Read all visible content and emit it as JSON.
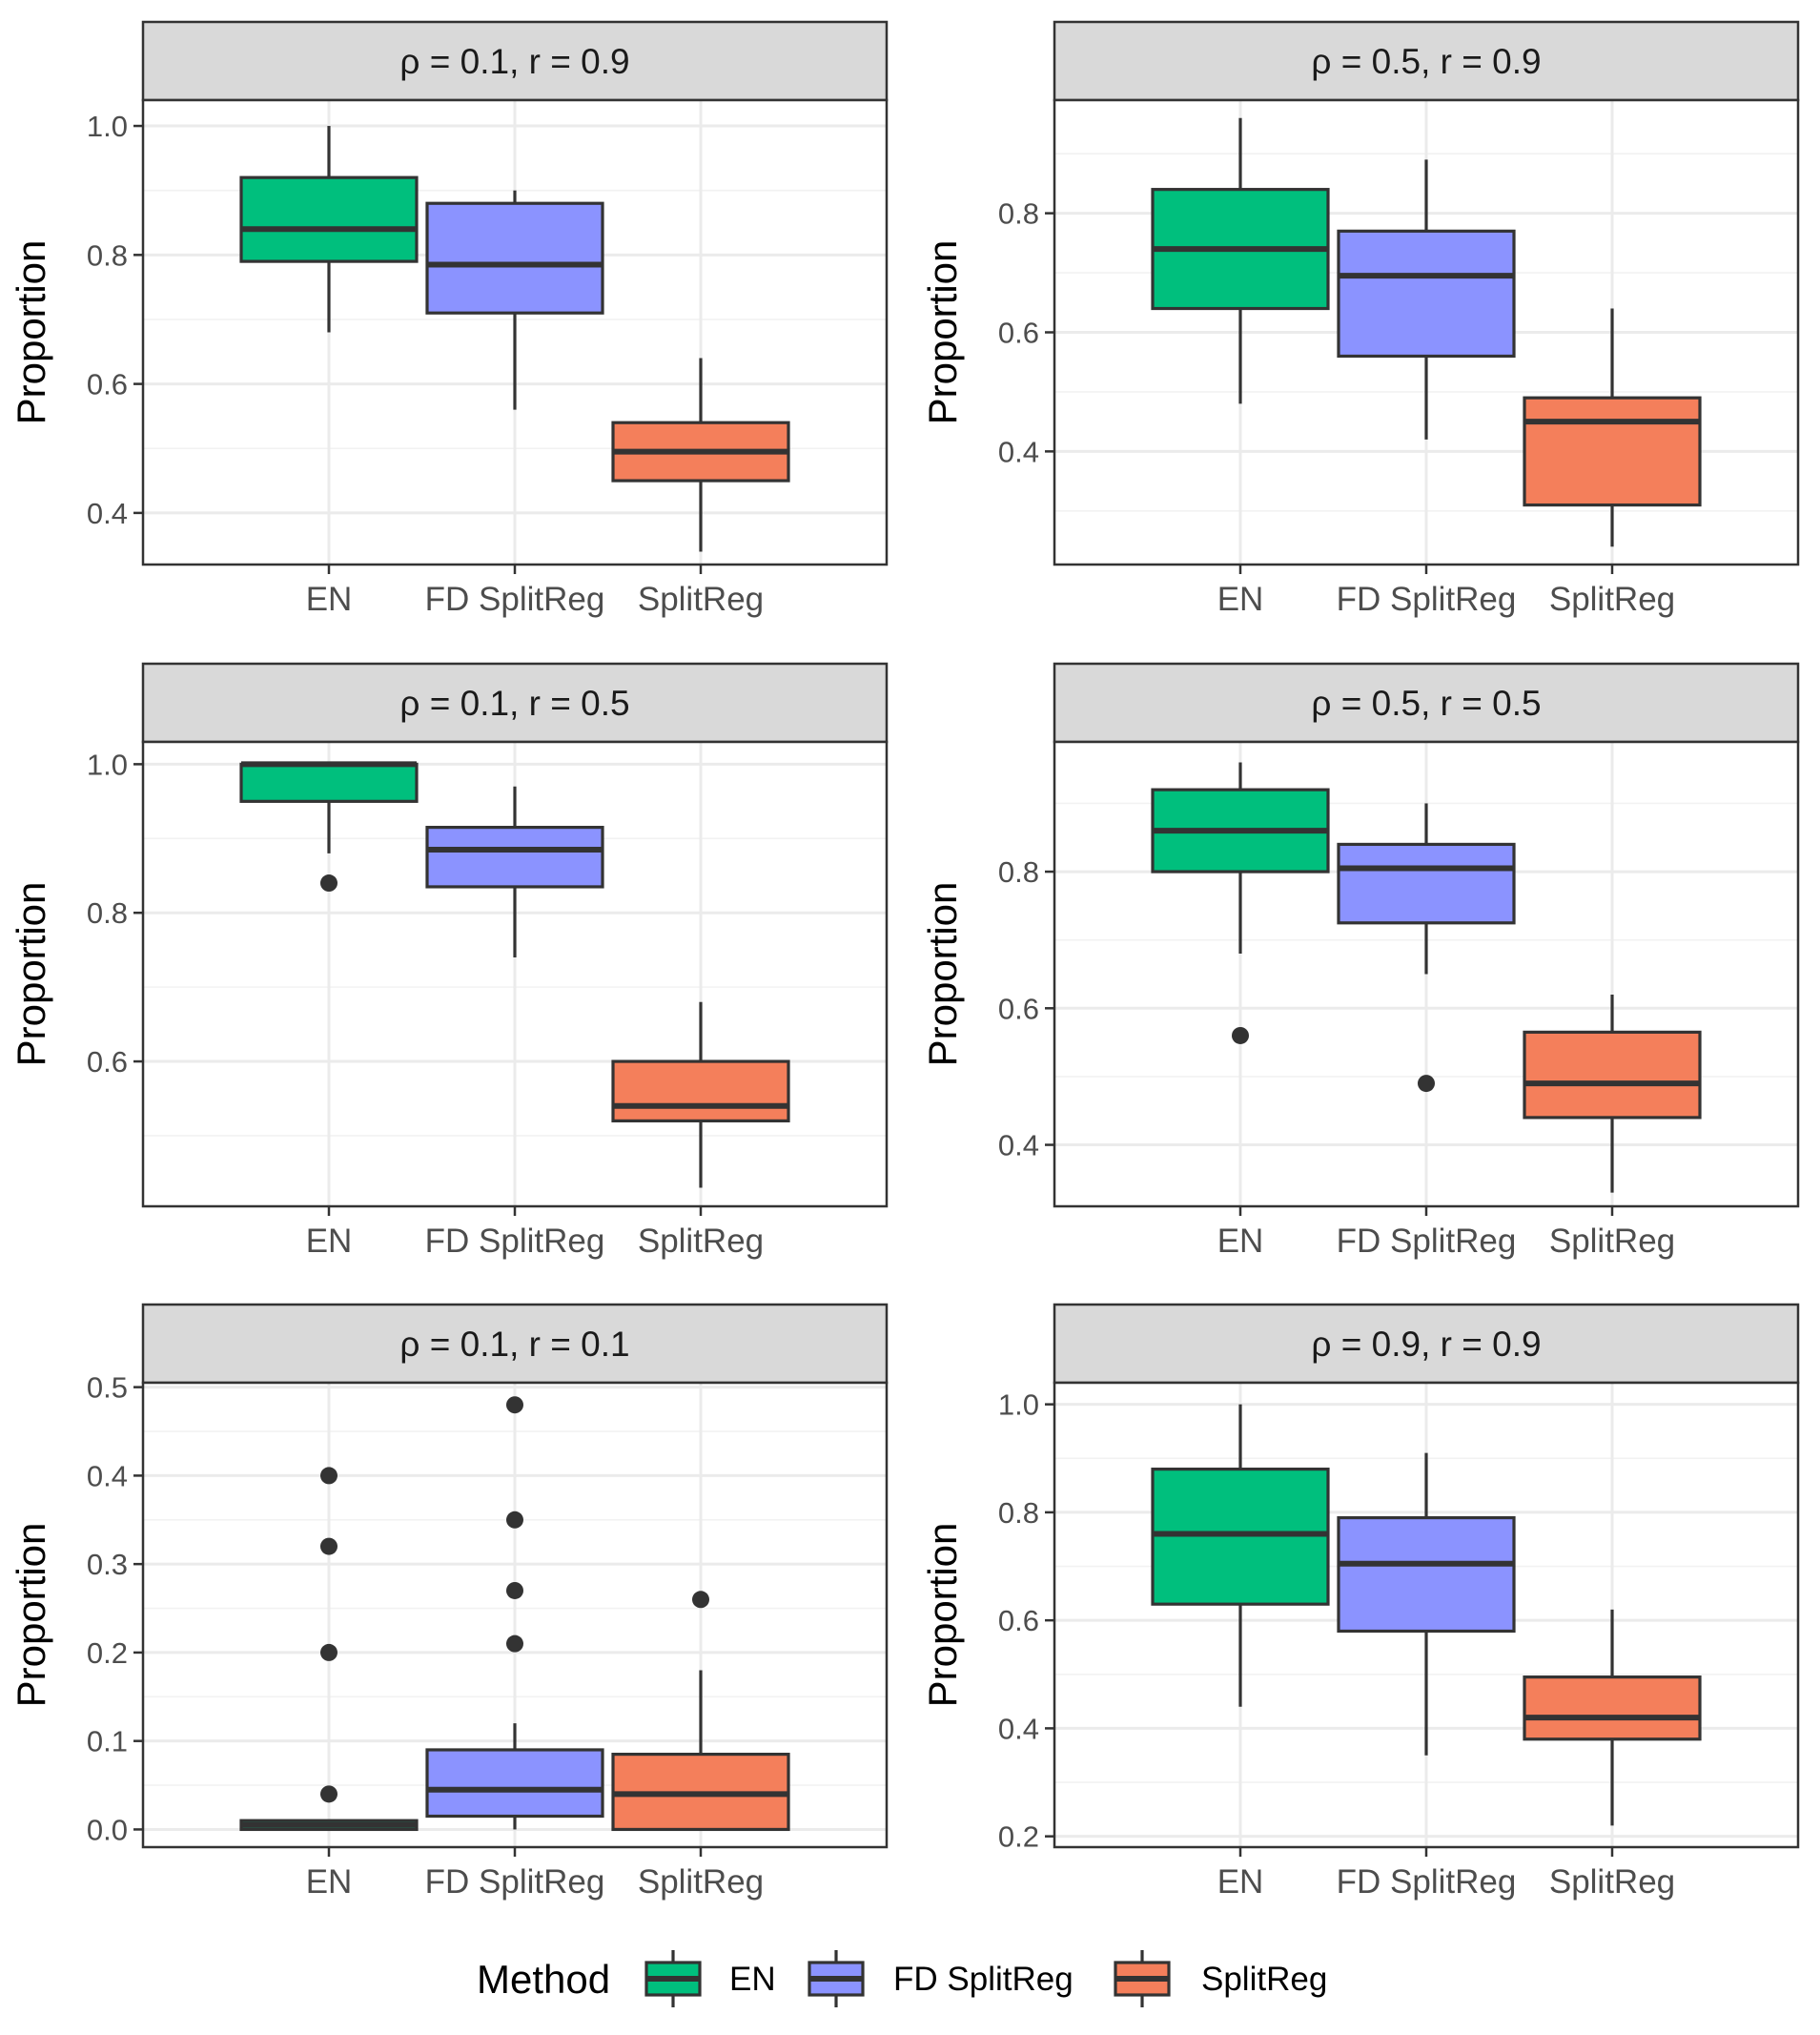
{
  "chart_data": [
    {
      "type": "boxplot",
      "title": "ρ = 0.1,  r = 0.9",
      "xlabel": "",
      "ylabel": "Proportion",
      "ylim": [
        0.32,
        1.04
      ],
      "yticks": [
        0.4,
        0.6,
        0.8,
        1.0
      ],
      "ytick_labels": [
        "0.4",
        "0.6",
        "0.8",
        "1.0"
      ],
      "categories": [
        "EN",
        "FD SplitReg",
        "SplitReg"
      ],
      "boxes": [
        {
          "category": "EN",
          "whisker_low": 0.68,
          "q1": 0.79,
          "median": 0.84,
          "q3": 0.92,
          "whisker_high": 1.0,
          "outliers": []
        },
        {
          "category": "FD SplitReg",
          "whisker_low": 0.56,
          "q1": 0.71,
          "median": 0.785,
          "q3": 0.88,
          "whisker_high": 0.9,
          "outliers": []
        },
        {
          "category": "SplitReg",
          "whisker_low": 0.34,
          "q1": 0.45,
          "median": 0.495,
          "q3": 0.54,
          "whisker_high": 0.64,
          "outliers": []
        }
      ]
    },
    {
      "type": "boxplot",
      "title": "ρ = 0.5,  r = 0.9",
      "xlabel": "",
      "ylabel": "Proportion",
      "ylim": [
        0.21,
        0.99
      ],
      "yticks": [
        0.4,
        0.6,
        0.8
      ],
      "ytick_labels": [
        "0.4",
        "0.6",
        "0.8"
      ],
      "categories": [
        "EN",
        "FD SplitReg",
        "SplitReg"
      ],
      "boxes": [
        {
          "category": "EN",
          "whisker_low": 0.48,
          "q1": 0.64,
          "median": 0.74,
          "q3": 0.84,
          "whisker_high": 0.96,
          "outliers": []
        },
        {
          "category": "FD SplitReg",
          "whisker_low": 0.42,
          "q1": 0.56,
          "median": 0.695,
          "q3": 0.77,
          "whisker_high": 0.89,
          "outliers": []
        },
        {
          "category": "SplitReg",
          "whisker_low": 0.24,
          "q1": 0.31,
          "median": 0.45,
          "q3": 0.49,
          "whisker_high": 0.64,
          "outliers": []
        }
      ]
    },
    {
      "type": "boxplot",
      "title": "ρ = 0.1,  r = 0.5",
      "xlabel": "",
      "ylabel": "Proportion",
      "ylim": [
        0.405,
        1.03
      ],
      "yticks": [
        0.6,
        0.8,
        1.0
      ],
      "ytick_labels": [
        "0.6",
        "0.8",
        "1.0"
      ],
      "categories": [
        "EN",
        "FD SplitReg",
        "SplitReg"
      ],
      "boxes": [
        {
          "category": "EN",
          "whisker_low": 0.88,
          "q1": 0.95,
          "median": 1.0,
          "q3": 1.0,
          "whisker_high": 1.0,
          "outliers": [
            0.84
          ]
        },
        {
          "category": "FD SplitReg",
          "whisker_low": 0.74,
          "q1": 0.835,
          "median": 0.885,
          "q3": 0.915,
          "whisker_high": 0.97,
          "outliers": []
        },
        {
          "category": "SplitReg",
          "whisker_low": 0.43,
          "q1": 0.52,
          "median": 0.54,
          "q3": 0.6,
          "whisker_high": 0.68,
          "outliers": []
        }
      ]
    },
    {
      "type": "boxplot",
      "title": "ρ = 0.5,  r = 0.5",
      "xlabel": "",
      "ylabel": "Proportion",
      "ylim": [
        0.31,
        0.99
      ],
      "yticks": [
        0.4,
        0.6,
        0.8
      ],
      "ytick_labels": [
        "0.4",
        "0.6",
        "0.8"
      ],
      "categories": [
        "EN",
        "FD SplitReg",
        "SplitReg"
      ],
      "boxes": [
        {
          "category": "EN",
          "whisker_low": 0.68,
          "q1": 0.8,
          "median": 0.86,
          "q3": 0.92,
          "whisker_high": 0.96,
          "outliers": [
            0.56
          ]
        },
        {
          "category": "FD SplitReg",
          "whisker_low": 0.65,
          "q1": 0.725,
          "median": 0.805,
          "q3": 0.84,
          "whisker_high": 0.9,
          "outliers": [
            0.49
          ]
        },
        {
          "category": "SplitReg",
          "whisker_low": 0.33,
          "q1": 0.44,
          "median": 0.49,
          "q3": 0.565,
          "whisker_high": 0.62,
          "outliers": []
        }
      ]
    },
    {
      "type": "boxplot",
      "title": "ρ = 0.1,  r = 0.1",
      "xlabel": "",
      "ylabel": "Proportion",
      "ylim": [
        -0.02,
        0.505
      ],
      "yticks": [
        0.0,
        0.1,
        0.2,
        0.3,
        0.4,
        0.5
      ],
      "ytick_labels": [
        "0.0",
        "0.1",
        "0.2",
        "0.3",
        "0.4",
        "0.5"
      ],
      "categories": [
        "EN",
        "FD SplitReg",
        "SplitReg"
      ],
      "boxes": [
        {
          "category": "EN",
          "whisker_low": 0.0,
          "q1": 0.0,
          "median": 0.005,
          "q3": 0.01,
          "whisker_high": 0.01,
          "outliers": [
            0.04,
            0.2,
            0.32,
            0.4
          ]
        },
        {
          "category": "FD SplitReg",
          "whisker_low": 0.0,
          "q1": 0.015,
          "median": 0.045,
          "q3": 0.09,
          "whisker_high": 0.12,
          "outliers": [
            0.21,
            0.27,
            0.35,
            0.48
          ]
        },
        {
          "category": "SplitReg",
          "whisker_low": 0.0,
          "q1": 0.0,
          "median": 0.04,
          "q3": 0.085,
          "whisker_high": 0.18,
          "outliers": [
            0.26
          ]
        }
      ]
    },
    {
      "type": "boxplot",
      "title": "ρ = 0.9,  r = 0.9",
      "xlabel": "",
      "ylabel": "Proportion",
      "ylim": [
        0.18,
        1.04
      ],
      "yticks": [
        0.2,
        0.4,
        0.6,
        0.8,
        1.0
      ],
      "ytick_labels": [
        "0.2",
        "0.4",
        "0.6",
        "0.8",
        "1.0"
      ],
      "categories": [
        "EN",
        "FD SplitReg",
        "SplitReg"
      ],
      "boxes": [
        {
          "category": "EN",
          "whisker_low": 0.44,
          "q1": 0.63,
          "median": 0.76,
          "q3": 0.88,
          "whisker_high": 1.0,
          "outliers": []
        },
        {
          "category": "FD SplitReg",
          "whisker_low": 0.35,
          "q1": 0.58,
          "median": 0.705,
          "q3": 0.79,
          "whisker_high": 0.91,
          "outliers": []
        },
        {
          "category": "SplitReg",
          "whisker_low": 0.22,
          "q1": 0.38,
          "median": 0.42,
          "q3": 0.495,
          "whisker_high": 0.62,
          "outliers": []
        }
      ]
    }
  ],
  "legend": {
    "title": "Method",
    "position": "bottom",
    "entries": [
      {
        "label": "EN",
        "color": "#00bf7d"
      },
      {
        "label": "FD SplitReg",
        "color": "#8b93ff"
      },
      {
        "label": "SplitReg",
        "color": "#f47f5b"
      }
    ]
  },
  "colors": {
    "EN": "#00bf7d",
    "FD SplitReg": "#8b93ff",
    "SplitReg": "#f47f5b"
  }
}
